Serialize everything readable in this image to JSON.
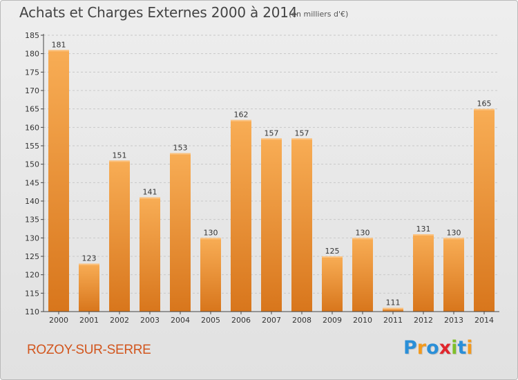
{
  "title": "Achats et Charges Externes 2000 à 2014",
  "subtitle": "(en milliers d'€)",
  "location": "ROZOY-SUR-SERRE",
  "logo": {
    "text": "Proxiti",
    "letters": [
      {
        "ch": "P",
        "color": "#2a8fd8"
      },
      {
        "ch": "r",
        "color": "#f39a1e"
      },
      {
        "ch": "o",
        "color": "#2a8fd8"
      },
      {
        "ch": "x",
        "color": "#e0262d"
      },
      {
        "ch": "i",
        "color": "#7fbf2a"
      },
      {
        "ch": "t",
        "color": "#2a8fd8"
      },
      {
        "ch": "i",
        "color": "#f39a1e"
      }
    ]
  },
  "colors": {
    "bar_light": "#f7a84f",
    "bar_dark": "#d9781f",
    "grid": "#c8c8c8",
    "axis": "#444444",
    "title": "#444444",
    "location": "#d2561e"
  },
  "chart_data": {
    "type": "bar",
    "categories": [
      "2000",
      "2001",
      "2002",
      "2003",
      "2004",
      "2005",
      "2006",
      "2007",
      "2008",
      "2009",
      "2010",
      "2011",
      "2012",
      "2013",
      "2014"
    ],
    "values": [
      181,
      123,
      151,
      141,
      153,
      130,
      162,
      157,
      157,
      125,
      130,
      111,
      131,
      130,
      165
    ],
    "xlabel": "",
    "ylabel": "",
    "ylim": [
      110,
      185
    ],
    "yticks": [
      110,
      115,
      120,
      125,
      130,
      135,
      140,
      145,
      150,
      155,
      160,
      165,
      170,
      175,
      180,
      185
    ],
    "grid": true,
    "grid_style": "dashed horizontal",
    "data_labels": true
  }
}
